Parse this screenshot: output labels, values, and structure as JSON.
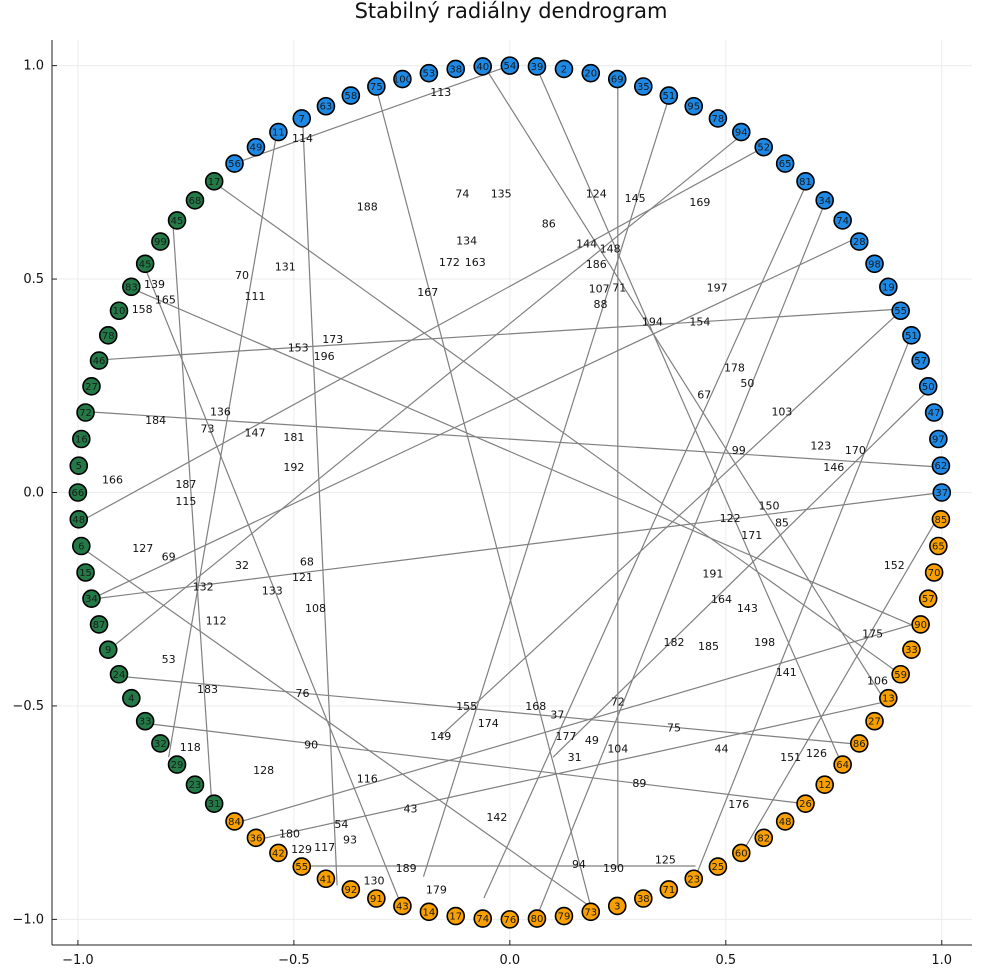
{
  "chart_data": {
    "type": "scatter",
    "subtype": "radial-dendrogram",
    "title": "Stabilný radiálny dendrogram",
    "xlabel": "",
    "ylabel": "",
    "xlim": [
      -1.06,
      1.07
    ],
    "ylim": [
      -1.06,
      1.06
    ],
    "xticks": [
      -1.0,
      -0.5,
      0.0,
      0.5,
      1.0
    ],
    "yticks": [
      -1.0,
      -0.5,
      0.0,
      0.5,
      1.0
    ],
    "xtick_labels": [
      "−1.0",
      "−0.5",
      "0.0",
      "0.5",
      "1.0"
    ],
    "ytick_labels": [
      "−1.0",
      "−0.5",
      "0.0",
      "0.5",
      "1.0"
    ],
    "grid": true,
    "legend": "none",
    "leaf_radius": 1.0,
    "leaf_start_angle_deg": 0,
    "leaf_step_deg": 3.6,
    "cluster_colors": {
      "blue": "#1E88E5",
      "green": "#237A47",
      "orange": "#F9A000"
    },
    "edge_color": "#808080",
    "leaves": [
      {
        "label": "37",
        "cluster": "blue"
      },
      {
        "label": "62",
        "cluster": "blue"
      },
      {
        "label": "97",
        "cluster": "blue"
      },
      {
        "label": "47",
        "cluster": "blue"
      },
      {
        "label": "50",
        "cluster": "blue"
      },
      {
        "label": "57",
        "cluster": "blue"
      },
      {
        "label": "51",
        "cluster": "blue"
      },
      {
        "label": "55",
        "cluster": "blue"
      },
      {
        "label": "19",
        "cluster": "blue"
      },
      {
        "label": "98",
        "cluster": "blue"
      },
      {
        "label": "28",
        "cluster": "blue"
      },
      {
        "label": "74",
        "cluster": "blue"
      },
      {
        "label": "34",
        "cluster": "blue"
      },
      {
        "label": "81",
        "cluster": "blue"
      },
      {
        "label": "65",
        "cluster": "blue"
      },
      {
        "label": "52",
        "cluster": "blue"
      },
      {
        "label": "94",
        "cluster": "blue"
      },
      {
        "label": "78",
        "cluster": "blue"
      },
      {
        "label": "95",
        "cluster": "blue"
      },
      {
        "label": "51",
        "cluster": "blue"
      },
      {
        "label": "35",
        "cluster": "blue"
      },
      {
        "label": "69",
        "cluster": "blue"
      },
      {
        "label": "20",
        "cluster": "blue"
      },
      {
        "label": "2",
        "cluster": "blue"
      },
      {
        "label": "39",
        "cluster": "blue"
      },
      {
        "label": "54",
        "cluster": "blue"
      },
      {
        "label": "40",
        "cluster": "blue"
      },
      {
        "label": "38",
        "cluster": "blue"
      },
      {
        "label": "53",
        "cluster": "blue"
      },
      {
        "label": "100",
        "cluster": "blue"
      },
      {
        "label": "75",
        "cluster": "blue"
      },
      {
        "label": "58",
        "cluster": "blue"
      },
      {
        "label": "63",
        "cluster": "blue"
      },
      {
        "label": "7",
        "cluster": "blue"
      },
      {
        "label": "11",
        "cluster": "blue"
      },
      {
        "label": "49",
        "cluster": "blue"
      },
      {
        "label": "56",
        "cluster": "blue"
      },
      {
        "label": "17",
        "cluster": "green"
      },
      {
        "label": "68",
        "cluster": "green"
      },
      {
        "label": "45",
        "cluster": "green"
      },
      {
        "label": "99",
        "cluster": "green"
      },
      {
        "label": "45",
        "cluster": "green"
      },
      {
        "label": "83",
        "cluster": "green"
      },
      {
        "label": "10",
        "cluster": "green"
      },
      {
        "label": "78",
        "cluster": "green"
      },
      {
        "label": "46",
        "cluster": "green"
      },
      {
        "label": "27",
        "cluster": "green"
      },
      {
        "label": "72",
        "cluster": "green"
      },
      {
        "label": "16",
        "cluster": "green"
      },
      {
        "label": "5",
        "cluster": "green"
      },
      {
        "label": "66",
        "cluster": "green"
      },
      {
        "label": "48",
        "cluster": "green"
      },
      {
        "label": "6",
        "cluster": "green"
      },
      {
        "label": "15",
        "cluster": "green"
      },
      {
        "label": "34",
        "cluster": "green"
      },
      {
        "label": "87",
        "cluster": "green"
      },
      {
        "label": "9",
        "cluster": "green"
      },
      {
        "label": "24",
        "cluster": "green"
      },
      {
        "label": "4",
        "cluster": "green"
      },
      {
        "label": "33",
        "cluster": "green"
      },
      {
        "label": "32",
        "cluster": "green"
      },
      {
        "label": "29",
        "cluster": "green"
      },
      {
        "label": "23",
        "cluster": "green"
      },
      {
        "label": "31",
        "cluster": "green"
      },
      {
        "label": "84",
        "cluster": "orange"
      },
      {
        "label": "36",
        "cluster": "orange"
      },
      {
        "label": "42",
        "cluster": "orange"
      },
      {
        "label": "55",
        "cluster": "orange"
      },
      {
        "label": "41",
        "cluster": "orange"
      },
      {
        "label": "92",
        "cluster": "orange"
      },
      {
        "label": "91",
        "cluster": "orange"
      },
      {
        "label": "43",
        "cluster": "orange"
      },
      {
        "label": "14",
        "cluster": "orange"
      },
      {
        "label": "17",
        "cluster": "orange"
      },
      {
        "label": "74",
        "cluster": "orange"
      },
      {
        "label": "76",
        "cluster": "orange"
      },
      {
        "label": "80",
        "cluster": "orange"
      },
      {
        "label": "79",
        "cluster": "orange"
      },
      {
        "label": "73",
        "cluster": "orange"
      },
      {
        "label": "3",
        "cluster": "orange"
      },
      {
        "label": "38",
        "cluster": "orange"
      },
      {
        "label": "71",
        "cluster": "orange"
      },
      {
        "label": "23",
        "cluster": "orange"
      },
      {
        "label": "25",
        "cluster": "orange"
      },
      {
        "label": "60",
        "cluster": "orange"
      },
      {
        "label": "82",
        "cluster": "orange"
      },
      {
        "label": "48",
        "cluster": "orange"
      },
      {
        "label": "26",
        "cluster": "orange"
      },
      {
        "label": "12",
        "cluster": "orange"
      },
      {
        "label": "64",
        "cluster": "orange"
      },
      {
        "label": "86",
        "cluster": "orange"
      },
      {
        "label": "27",
        "cluster": "orange"
      },
      {
        "label": "13",
        "cluster": "orange"
      },
      {
        "label": "59",
        "cluster": "orange"
      },
      {
        "label": "33",
        "cluster": "orange"
      },
      {
        "label": "90",
        "cluster": "orange"
      },
      {
        "label": "57",
        "cluster": "orange"
      },
      {
        "label": "70",
        "cluster": "orange"
      },
      {
        "label": "65",
        "cluster": "orange"
      },
      {
        "label": "85",
        "cluster": "orange"
      }
    ],
    "internal_nodes": [
      {
        "label": "113",
        "x": -0.16,
        "y": 0.94
      },
      {
        "label": "114",
        "x": -0.48,
        "y": 0.83
      },
      {
        "label": "74",
        "x": -0.11,
        "y": 0.7
      },
      {
        "label": "135",
        "x": -0.02,
        "y": 0.7
      },
      {
        "label": "124",
        "x": 0.2,
        "y": 0.7
      },
      {
        "label": "145",
        "x": 0.29,
        "y": 0.69
      },
      {
        "label": "169",
        "x": 0.44,
        "y": 0.68
      },
      {
        "label": "188",
        "x": -0.33,
        "y": 0.67
      },
      {
        "label": "86",
        "x": 0.09,
        "y": 0.63
      },
      {
        "label": "134",
        "x": -0.1,
        "y": 0.59
      },
      {
        "label": "144",
        "x": 0.18,
        "y": 0.58
      },
      {
        "label": "148",
        "x": 0.23,
        "y": 0.56
      },
      {
        "label": "172",
        "x": -0.14,
        "y": 0.54
      },
      {
        "label": "163",
        "x": -0.08,
        "y": 0.54
      },
      {
        "label": "186",
        "x": 0.2,
        "y": 0.55
      },
      {
        "label": "131",
        "x": -0.52,
        "y": 0.53
      },
      {
        "label": "70",
        "x": -0.62,
        "y": 0.51
      },
      {
        "label": "197",
        "x": 0.48,
        "y": 0.48
      },
      {
        "label": "107",
        "x": 0.21,
        "y": 0.47
      },
      {
        "label": "71",
        "x": 0.25,
        "y": 0.48
      },
      {
        "label": "88",
        "x": 0.21,
        "y": 0.45
      },
      {
        "label": "111",
        "x": -0.59,
        "y": 0.46
      },
      {
        "label": "167",
        "x": -0.19,
        "y": 0.47
      },
      {
        "label": "165",
        "x": -0.8,
        "y": 0.46
      },
      {
        "label": "139",
        "x": -0.83,
        "y": 0.48
      },
      {
        "label": "158",
        "x": -0.88,
        "y": 0.43
      },
      {
        "label": "194",
        "x": 0.33,
        "y": 0.4
      },
      {
        "label": "154",
        "x": 0.44,
        "y": 0.4
      },
      {
        "label": "173",
        "x": -0.41,
        "y": 0.36
      },
      {
        "label": "153",
        "x": -0.49,
        "y": 0.34
      },
      {
        "label": "196",
        "x": -0.43,
        "y": 0.32
      },
      {
        "label": "178",
        "x": 0.52,
        "y": 0.29
      },
      {
        "label": "50",
        "x": 0.55,
        "y": 0.26
      },
      {
        "label": "67",
        "x": 0.45,
        "y": 0.23
      },
      {
        "label": "103",
        "x": 0.63,
        "y": 0.19
      },
      {
        "label": "136",
        "x": -0.67,
        "y": 0.19
      },
      {
        "label": "184",
        "x": -0.82,
        "y": 0.17
      },
      {
        "label": "73",
        "x": -0.7,
        "y": 0.15
      },
      {
        "label": "147",
        "x": -0.59,
        "y": 0.14
      },
      {
        "label": "181",
        "x": -0.5,
        "y": 0.13
      },
      {
        "label": "99",
        "x": 0.53,
        "y": 0.1
      },
      {
        "label": "123",
        "x": 0.72,
        "y": 0.11
      },
      {
        "label": "170",
        "x": 0.8,
        "y": 0.1
      },
      {
        "label": "146",
        "x": 0.75,
        "y": 0.06
      },
      {
        "label": "192",
        "x": -0.5,
        "y": 0.06
      },
      {
        "label": "166",
        "x": -0.92,
        "y": 0.03
      },
      {
        "label": "187",
        "x": -0.75,
        "y": 0.02
      },
      {
        "label": "115",
        "x": -0.75,
        "y": -0.02
      },
      {
        "label": "150",
        "x": 0.6,
        "y": -0.03
      },
      {
        "label": "122",
        "x": 0.51,
        "y": -0.06
      },
      {
        "label": "85",
        "x": 0.63,
        "y": -0.07
      },
      {
        "label": "171",
        "x": 0.56,
        "y": -0.1
      },
      {
        "label": "127",
        "x": -0.85,
        "y": -0.13
      },
      {
        "label": "69",
        "x": -0.79,
        "y": -0.15
      },
      {
        "label": "32",
        "x": -0.62,
        "y": -0.17
      },
      {
        "label": "68",
        "x": -0.47,
        "y": -0.17
      },
      {
        "label": "121",
        "x": -0.48,
        "y": -0.19
      },
      {
        "label": "152",
        "x": 0.89,
        "y": -0.17
      },
      {
        "label": "191",
        "x": 0.47,
        "y": -0.19
      },
      {
        "label": "132",
        "x": -0.71,
        "y": -0.22
      },
      {
        "label": "133",
        "x": -0.55,
        "y": -0.23
      },
      {
        "label": "164",
        "x": 0.49,
        "y": -0.25
      },
      {
        "label": "143",
        "x": 0.55,
        "y": -0.27
      },
      {
        "label": "108",
        "x": -0.45,
        "y": -0.27
      },
      {
        "label": "112",
        "x": -0.68,
        "y": -0.3
      },
      {
        "label": "175",
        "x": 0.84,
        "y": -0.33
      },
      {
        "label": "182",
        "x": 0.38,
        "y": -0.35
      },
      {
        "label": "185",
        "x": 0.46,
        "y": -0.36
      },
      {
        "label": "198",
        "x": 0.59,
        "y": -0.35
      },
      {
        "label": "53",
        "x": -0.79,
        "y": -0.39
      },
      {
        "label": "141",
        "x": 0.64,
        "y": -0.42
      },
      {
        "label": "106",
        "x": 0.87,
        "y": -0.46
      },
      {
        "label": "183",
        "x": -0.7,
        "y": -0.46
      },
      {
        "label": "76",
        "x": -0.48,
        "y": -0.47
      },
      {
        "label": "155",
        "x": -0.1,
        "y": -0.5
      },
      {
        "label": "168",
        "x": 0.06,
        "y": -0.5
      },
      {
        "label": "37",
        "x": 0.11,
        "y": -0.52
      },
      {
        "label": "72",
        "x": 0.25,
        "y": -0.49
      },
      {
        "label": "174",
        "x": -0.05,
        "y": -0.54
      },
      {
        "label": "75",
        "x": 0.38,
        "y": -0.55
      },
      {
        "label": "177",
        "x": 0.13,
        "y": -0.57
      },
      {
        "label": "149",
        "x": -0.16,
        "y": -0.57
      },
      {
        "label": "49",
        "x": 0.19,
        "y": -0.58
      },
      {
        "label": "90",
        "x": -0.46,
        "y": -0.59
      },
      {
        "label": "118",
        "x": -0.74,
        "y": -0.6
      },
      {
        "label": "104",
        "x": 0.25,
        "y": -0.6
      },
      {
        "label": "44",
        "x": 0.49,
        "y": -0.6
      },
      {
        "label": "31",
        "x": 0.15,
        "y": -0.62
      },
      {
        "label": "126",
        "x": 0.71,
        "y": -0.61
      },
      {
        "label": "151",
        "x": 0.65,
        "y": -0.62
      },
      {
        "label": "128",
        "x": -0.57,
        "y": -0.65
      },
      {
        "label": "116",
        "x": -0.33,
        "y": -0.67
      },
      {
        "label": "89",
        "x": 0.3,
        "y": -0.68
      },
      {
        "label": "176",
        "x": 0.53,
        "y": -0.73
      },
      {
        "label": "43",
        "x": -0.23,
        "y": -0.74
      },
      {
        "label": "142",
        "x": -0.03,
        "y": -0.76
      },
      {
        "label": "54",
        "x": -0.39,
        "y": -0.78
      },
      {
        "label": "93",
        "x": -0.37,
        "y": -0.81
      },
      {
        "label": "180",
        "x": -0.51,
        "y": -0.8
      },
      {
        "label": "117",
        "x": -0.45,
        "y": -0.83
      },
      {
        "label": "129",
        "x": -0.5,
        "y": -0.85
      },
      {
        "label": "189",
        "x": -0.24,
        "y": -0.88
      },
      {
        "label": "94",
        "x": 0.16,
        "y": -0.87
      },
      {
        "label": "190",
        "x": 0.24,
        "y": -0.88
      },
      {
        "label": "125",
        "x": 0.36,
        "y": -0.86
      },
      {
        "label": "179",
        "x": -0.17,
        "y": -0.93
      },
      {
        "label": "130",
        "x": -0.34,
        "y": -0.93
      }
    ],
    "edges": [
      {
        "x1": 0.0,
        "y1": 1.0,
        "x2": -0.64,
        "y2": 0.77
      },
      {
        "x1": 0.25,
        "y1": 0.97,
        "x2": 0.25,
        "y2": -0.88
      },
      {
        "x1": -0.48,
        "y1": -0.875,
        "x2": 0.43,
        "y2": -0.875
      },
      {
        "x1": -0.96,
        "y1": 0.31,
        "x2": 0.91,
        "y2": 0.43
      },
      {
        "x1": 1.0,
        "y1": 0.0,
        "x2": -0.97,
        "y2": -0.25
      },
      {
        "x1": -0.99,
        "y1": 0.19,
        "x2": 0.99,
        "y2": 0.06
      },
      {
        "x1": -0.91,
        "y1": -0.43,
        "x2": 0.81,
        "y2": -0.59
      },
      {
        "x1": -0.85,
        "y1": -0.54,
        "x2": 0.69,
        "y2": -0.73
      },
      {
        "x1": -0.69,
        "y1": 0.73,
        "x2": 0.91,
        "y2": -0.43
      },
      {
        "x1": 0.59,
        "y1": 0.81,
        "x2": -0.98,
        "y2": -0.06
      },
      {
        "x1": 0.91,
        "y1": 0.43,
        "x2": -0.16,
        "y2": -0.57
      },
      {
        "x1": 0.98,
        "y1": 0.25,
        "x2": 0.1,
        "y2": -0.62
      },
      {
        "x1": 0.37,
        "y1": 0.93,
        "x2": -0.2,
        "y2": -0.9
      },
      {
        "x1": 0.69,
        "y1": 0.73,
        "x2": -0.06,
        "y2": -0.95
      },
      {
        "x1": 0.73,
        "y1": 0.68,
        "x2": 0.06,
        "y2": -1.0
      },
      {
        "x1": -0.06,
        "y1": 1.0,
        "x2": 0.87,
        "y2": -0.49
      },
      {
        "x1": 0.06,
        "y1": 1.0,
        "x2": 0.77,
        "y2": -0.64
      },
      {
        "x1": -0.31,
        "y1": 0.95,
        "x2": 0.19,
        "y2": -0.98
      },
      {
        "x1": -0.54,
        "y1": 0.84,
        "x2": -0.79,
        "y2": -0.62
      },
      {
        "x1": 0.54,
        "y1": 0.84,
        "x2": -0.93,
        "y2": -0.37
      },
      {
        "x1": -0.85,
        "y1": 0.54,
        "x2": -0.25,
        "y2": -0.97
      },
      {
        "x1": -0.78,
        "y1": 0.63,
        "x2": -0.69,
        "y2": -0.73
      },
      {
        "x1": -0.48,
        "y1": 0.88,
        "x2": -0.4,
        "y2": -0.92
      },
      {
        "x1": -0.97,
        "y1": -0.25,
        "x2": 0.79,
        "y2": 0.59
      },
      {
        "x1": -0.88,
        "y1": 0.48,
        "x2": 0.93,
        "y2": -0.31
      },
      {
        "x1": -0.62,
        "y1": -0.77,
        "x2": 0.93,
        "y2": -0.31
      },
      {
        "x1": -0.57,
        "y1": -0.81,
        "x2": 0.87,
        "y2": -0.49
      },
      {
        "x1": 0.99,
        "y1": -0.06,
        "x2": 0.54,
        "y2": -0.84
      },
      {
        "x1": 0.93,
        "y1": 0.37,
        "x2": 0.43,
        "y2": -0.9
      },
      {
        "x1": -0.99,
        "y1": -0.13,
        "x2": 0.2,
        "y2": -0.98
      }
    ]
  }
}
